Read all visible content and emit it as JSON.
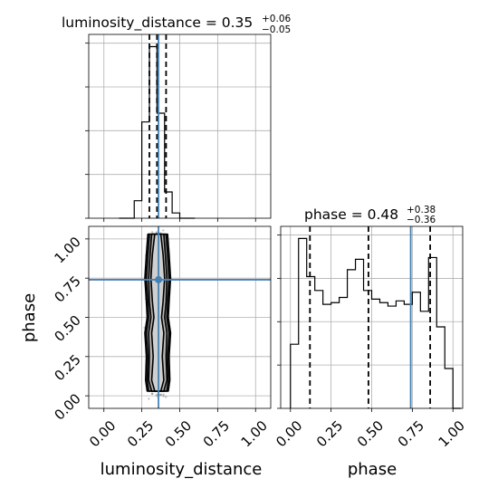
{
  "titles": {
    "lum": {
      "main": "luminosity_distance = 0.35",
      "sup": "+0.06",
      "sub": "−0.05"
    },
    "phase": {
      "main": "phase = 0.48",
      "sup": "+0.38",
      "sub": "−0.36"
    }
  },
  "colors": {
    "truth": "#4682b4",
    "hist": "#000000",
    "grid": "#b0b0b0",
    "points": "#555555"
  },
  "chart_data": [
    {
      "type": "bar",
      "panel": "luminosity_distance marginal histogram",
      "xlim": [
        -0.1,
        1.1
      ],
      "bin_edges": [
        0.1,
        0.15,
        0.2,
        0.25,
        0.3,
        0.35,
        0.4,
        0.45,
        0.5,
        0.55,
        0.6
      ],
      "counts": [
        0,
        0,
        0.1,
        0.55,
        0.98,
        0.6,
        0.15,
        0.03,
        0,
        0
      ],
      "quantiles": [
        0.3,
        0.35,
        0.41
      ],
      "truth": 0.36,
      "ylabels_visible": false
    },
    {
      "type": "bar",
      "panel": "phase marginal histogram",
      "xlim": [
        -0.06,
        1.06
      ],
      "bin_edges": [
        0.0,
        0.05,
        0.1,
        0.15,
        0.2,
        0.25,
        0.3,
        0.35,
        0.4,
        0.45,
        0.5,
        0.55,
        0.6,
        0.65,
        0.7,
        0.75,
        0.8,
        0.85,
        0.9,
        0.95,
        1.0,
        1.05
      ],
      "counts": [
        0.37,
        0.98,
        0.76,
        0.68,
        0.6,
        0.61,
        0.64,
        0.8,
        0.86,
        0.68,
        0.63,
        0.61,
        0.59,
        0.62,
        0.6,
        0.67,
        0.56,
        0.87,
        0.47,
        0.23,
        0.0
      ],
      "quantiles": [
        0.12,
        0.48,
        0.86
      ],
      "truth": 0.74,
      "xlabel": "phase",
      "xticks": [
        "0.00",
        "0.25",
        "0.50",
        "0.75",
        "1.00"
      ]
    },
    {
      "type": "scatter",
      "panel": "2D joint density (luminosity_distance vs phase)",
      "xlim": [
        -0.1,
        1.1
      ],
      "ylim": [
        -0.08,
        1.08
      ],
      "xlabel": "luminosity_distance",
      "ylabel": "phase",
      "xticks": [
        "0.00",
        "0.25",
        "0.50",
        "0.75",
        "1.00"
      ],
      "yticks": [
        "0.00",
        "0.25",
        "0.50",
        "0.75",
        "1.00"
      ],
      "truth": {
        "x": 0.36,
        "y": 0.74
      },
      "contour_profile": [
        {
          "phase": 0.03,
          "halfwidths": [
            0.02,
            0.04,
            0.06,
            0.07
          ]
        },
        {
          "phase": 0.1,
          "halfwidths": [
            0.04,
            0.06,
            0.07,
            0.08
          ]
        },
        {
          "phase": 0.25,
          "halfwidths": [
            0.03,
            0.055,
            0.065,
            0.075
          ]
        },
        {
          "phase": 0.4,
          "halfwidths": [
            0.04,
            0.06,
            0.075,
            0.085
          ]
        },
        {
          "phase": 0.5,
          "halfwidths": [
            0.025,
            0.045,
            0.06,
            0.07
          ]
        },
        {
          "phase": 0.6,
          "halfwidths": [
            0.035,
            0.055,
            0.065,
            0.075
          ]
        },
        {
          "phase": 0.75,
          "halfwidths": [
            0.045,
            0.06,
            0.075,
            0.085
          ]
        },
        {
          "phase": 0.9,
          "halfwidths": [
            0.035,
            0.05,
            0.065,
            0.075
          ]
        },
        {
          "phase": 1.03,
          "halfwidths": [
            0.02,
            0.04,
            0.055,
            0.065
          ]
        }
      ]
    }
  ]
}
